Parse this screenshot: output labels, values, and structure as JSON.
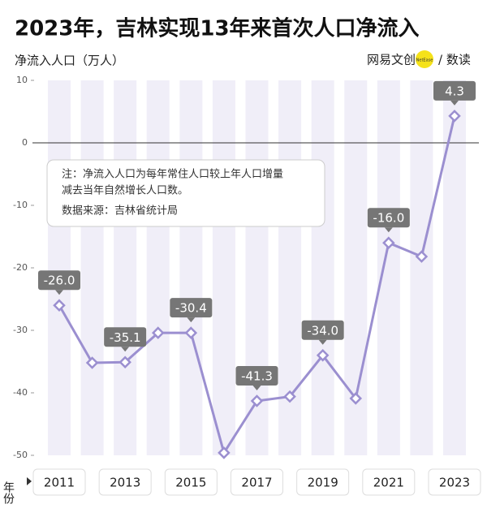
{
  "title": "2023年，吉林实现13年来首次人口净流入",
  "brand": {
    "name": "网易文创",
    "badge": "NetEase",
    "column": "/ 数读"
  },
  "note": {
    "lines": [
      "注：净流入人口为每年常住人口较上年人口增量",
      "减去当年自然增长人口数。"
    ],
    "source": "数据来源：吉林省统计局"
  },
  "chart_data": {
    "type": "line",
    "y_label": "净流入人口（万人）",
    "x_label": "年份",
    "categories": [
      "2011",
      null,
      "2013",
      null,
      "2015",
      null,
      "2017",
      null,
      "2019",
      null,
      "2021",
      null,
      "2023"
    ],
    "series": [
      {
        "name": "净流入人口",
        "color": "#9b8fd0",
        "values": [
          -26.0,
          -35.2,
          -35.1,
          -30.4,
          -30.4,
          -49.6,
          -41.3,
          -40.6,
          -34.0,
          -40.9,
          -16.0,
          -18.2,
          4.3
        ],
        "value_labels": [
          "-26.0",
          null,
          "-35.1",
          null,
          "-30.4",
          null,
          "-41.3",
          null,
          "-34.0",
          null,
          "-16.0",
          null,
          "4.3"
        ]
      }
    ],
    "ylim": [
      -50,
      10
    ],
    "yticks": [
      -50,
      -40,
      -30,
      -20,
      -10,
      0,
      10
    ],
    "grid": false
  }
}
